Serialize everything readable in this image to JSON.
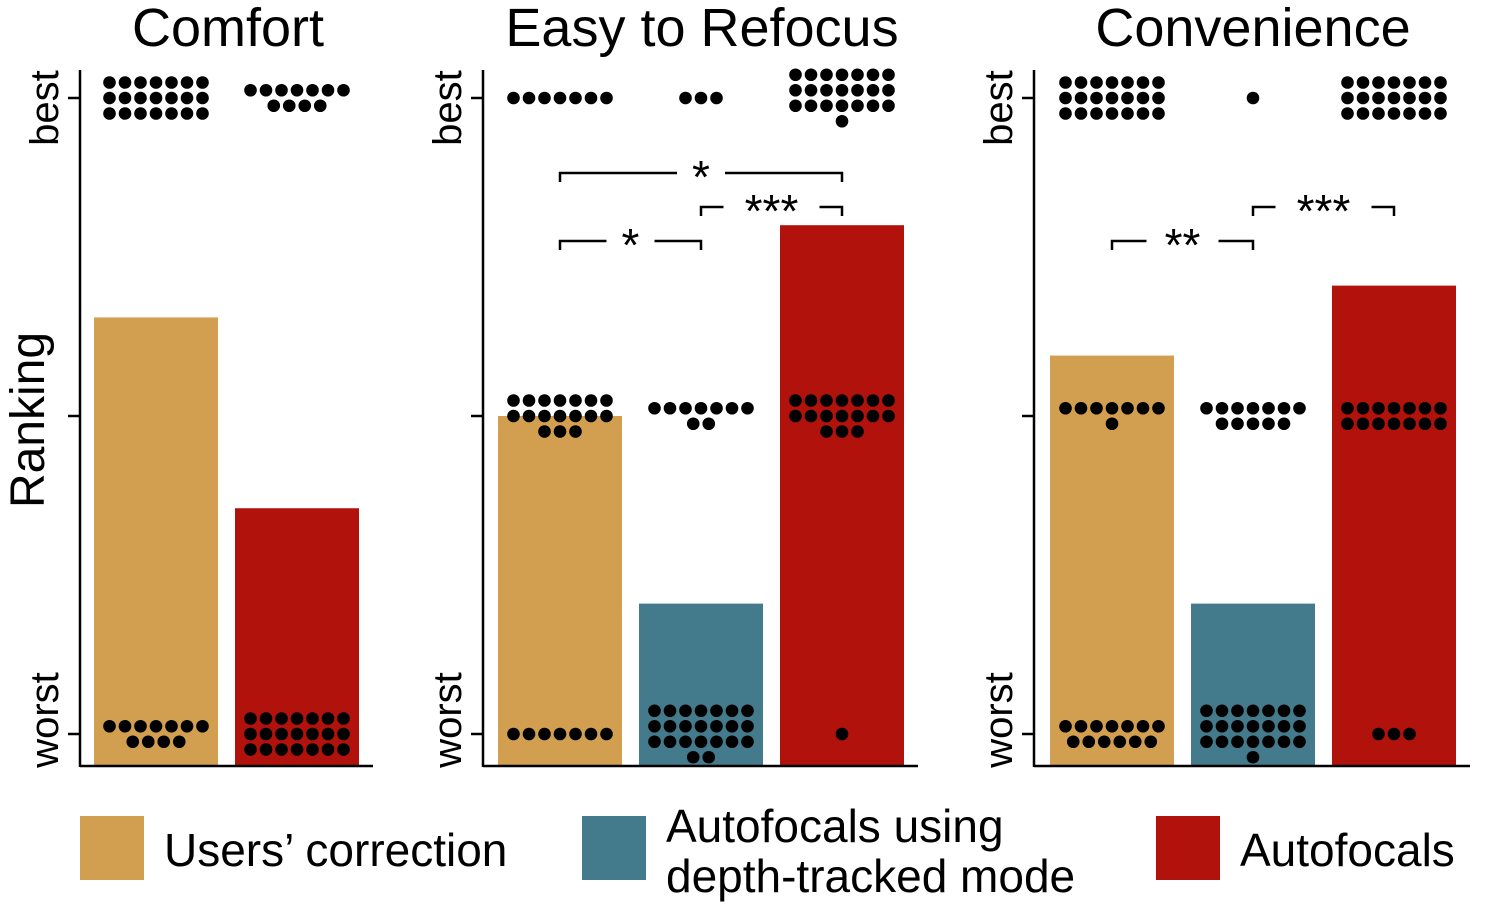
{
  "colors": {
    "users_correction": "#D19F4F",
    "depth_tracked": "#437A8C",
    "autofocals": "#B1120C",
    "dots": "#000000",
    "axis": "#000000"
  },
  "y_axis_title": "Ranking",
  "y_tick_labels": {
    "best": "best",
    "worst": "worst"
  },
  "chart_data": [
    {
      "type": "bar",
      "title": "Comfort",
      "ylabel": "Ranking",
      "ylim": [
        1,
        3
      ],
      "categories": [
        "Users’ correction",
        "Autofocals"
      ],
      "series_keys": [
        "users_correction",
        "autofocals"
      ],
      "values": [
        2.31,
        1.71
      ],
      "dot_counts": [
        {
          "best": 21,
          "middle": 0,
          "worst": 11
        },
        {
          "best": 11,
          "middle": 0,
          "worst": 21
        }
      ],
      "significance": []
    },
    {
      "type": "bar",
      "title": "Easy to Refocus",
      "ylabel": "",
      "ylim": [
        1,
        3
      ],
      "categories": [
        "Users’ correction",
        "Autofocals using depth-tracked mode",
        "Autofocals"
      ],
      "series_keys": [
        "users_correction",
        "depth_tracked",
        "autofocals"
      ],
      "values": [
        2.0,
        1.41,
        2.6
      ],
      "dot_counts": [
        {
          "best": 7,
          "middle": 17,
          "worst": 7
        },
        {
          "best": 3,
          "middle": 9,
          "worst": 23
        },
        {
          "best": 22,
          "middle": 17,
          "worst": 1
        }
      ],
      "significance": [
        {
          "from": 0,
          "to": 2,
          "label": "*",
          "level": 3
        },
        {
          "from": 1,
          "to": 2,
          "label": "***",
          "level": 2
        },
        {
          "from": 0,
          "to": 1,
          "label": "*",
          "level": 1
        }
      ]
    },
    {
      "type": "bar",
      "title": "Convenience",
      "ylabel": "",
      "ylim": [
        1,
        3
      ],
      "categories": [
        "Users’ correction",
        "Autofocals using depth-tracked mode",
        "Autofocals"
      ],
      "series_keys": [
        "users_correction",
        "depth_tracked",
        "autofocals"
      ],
      "values": [
        2.19,
        1.41,
        2.41
      ],
      "dot_counts": [
        {
          "best": 21,
          "middle": 8,
          "worst": 13
        },
        {
          "best": 1,
          "middle": 12,
          "worst": 22
        },
        {
          "best": 21,
          "middle": 14,
          "worst": 3
        }
      ],
      "significance": [
        {
          "from": 1,
          "to": 2,
          "label": "***",
          "level": 2
        },
        {
          "from": 0,
          "to": 1,
          "label": "**",
          "level": 1
        }
      ]
    }
  ],
  "legend": [
    {
      "key": "users_correction",
      "label": "Users’ correction"
    },
    {
      "key": "depth_tracked",
      "label_line1": "Autofocals using",
      "label_line2": "depth-tracked mode"
    },
    {
      "key": "autofocals",
      "label": "Autofocals"
    }
  ]
}
